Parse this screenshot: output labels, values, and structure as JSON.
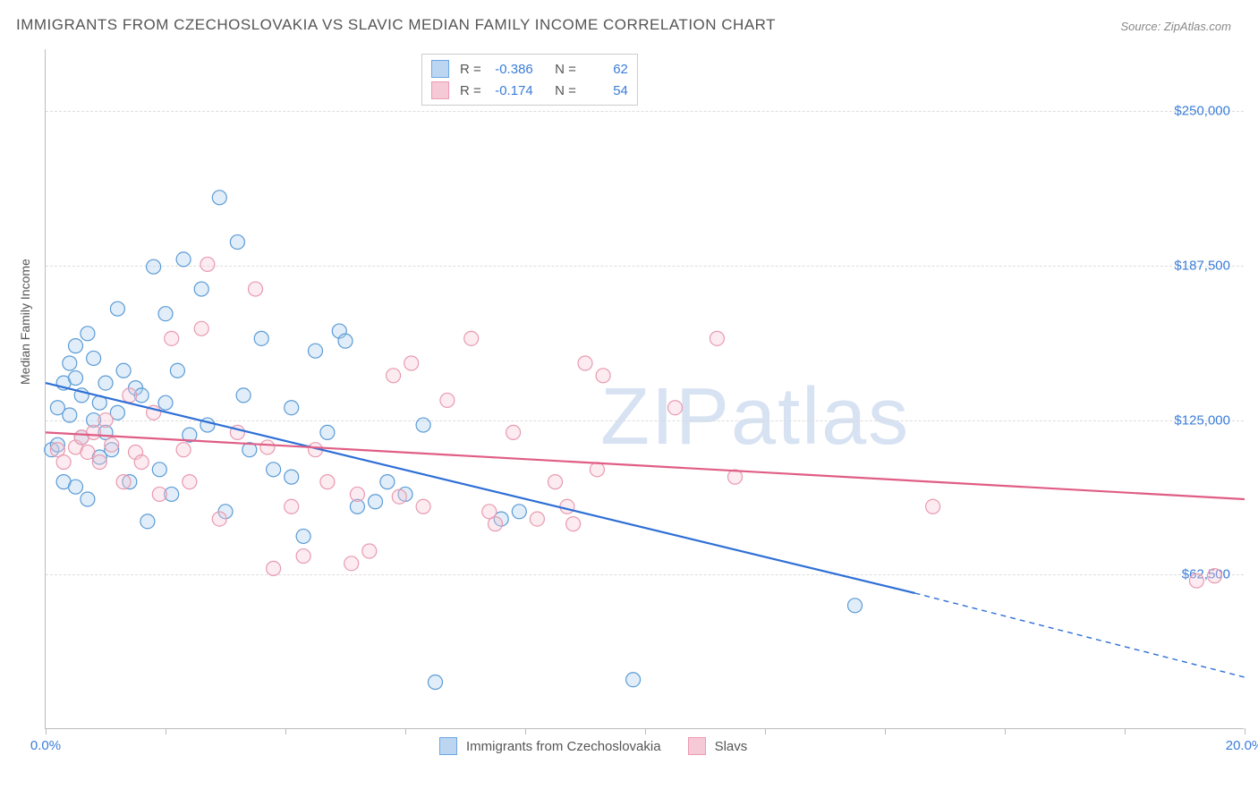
{
  "title": "IMMIGRANTS FROM CZECHOSLOVAKIA VS SLAVIC MEDIAN FAMILY INCOME CORRELATION CHART",
  "source_prefix": "Source: ",
  "source_name": "ZipAtlas.com",
  "watermark_left": "ZIP",
  "watermark_right": "atlas",
  "y_axis_label": "Median Family Income",
  "chart": {
    "type": "scatter",
    "background_color": "#ffffff",
    "grid_color": "#dddddd",
    "axis_color": "#bbbbbb",
    "tick_label_color": "#3b7dd8",
    "xlim": [
      0,
      20
    ],
    "ylim": [
      0,
      275000
    ],
    "x_ticks": [
      0,
      2,
      4,
      6,
      8,
      10,
      12,
      14,
      16,
      18,
      20
    ],
    "x_tick_labels": {
      "0": "0.0%",
      "20": "20.0%"
    },
    "y_gridlines": [
      62500,
      125000,
      187500,
      250000
    ],
    "y_tick_labels": {
      "62500": "$62,500",
      "125000": "$125,000",
      "187500": "$187,500",
      "250000": "$250,000"
    },
    "marker_radius": 8,
    "marker_stroke_width": 1.2,
    "marker_fill_opacity": 0.35,
    "trend_line_width": 2.2,
    "series": [
      {
        "name": "Immigrants from Czechoslovakia",
        "color_stroke": "#5b9bd5",
        "color_fill": "#a8cdef",
        "trend_color": "#2e6fd6",
        "swatch_fill": "#bcd6f2",
        "swatch_border": "#6ca6e2",
        "R": "-0.386",
        "N": "62",
        "trend": {
          "x1": 0,
          "y1": 140000,
          "x2_solid": 14.5,
          "y2_solid": 55000,
          "x2": 20,
          "y2": 21000
        },
        "points": [
          [
            0.1,
            113000
          ],
          [
            0.2,
            115000
          ],
          [
            0.2,
            130000
          ],
          [
            0.3,
            140000
          ],
          [
            0.3,
            100000
          ],
          [
            0.4,
            148000
          ],
          [
            0.4,
            127000
          ],
          [
            0.5,
            142000
          ],
          [
            0.5,
            98000
          ],
          [
            0.5,
            155000
          ],
          [
            0.6,
            118000
          ],
          [
            0.6,
            135000
          ],
          [
            0.7,
            160000
          ],
          [
            0.7,
            93000
          ],
          [
            0.8,
            125000
          ],
          [
            0.8,
            150000
          ],
          [
            0.9,
            132000
          ],
          [
            0.9,
            110000
          ],
          [
            1.0,
            140000
          ],
          [
            1.0,
            120000
          ],
          [
            1.1,
            113000
          ],
          [
            1.2,
            170000
          ],
          [
            1.2,
            128000
          ],
          [
            1.3,
            145000
          ],
          [
            1.4,
            100000
          ],
          [
            1.5,
            138000
          ],
          [
            1.6,
            135000
          ],
          [
            1.7,
            84000
          ],
          [
            1.8,
            187000
          ],
          [
            1.9,
            105000
          ],
          [
            2.0,
            168000
          ],
          [
            2.0,
            132000
          ],
          [
            2.1,
            95000
          ],
          [
            2.2,
            145000
          ],
          [
            2.3,
            190000
          ],
          [
            2.4,
            119000
          ],
          [
            2.6,
            178000
          ],
          [
            2.7,
            123000
          ],
          [
            2.9,
            215000
          ],
          [
            3.0,
            88000
          ],
          [
            3.2,
            197000
          ],
          [
            3.3,
            135000
          ],
          [
            3.4,
            113000
          ],
          [
            3.6,
            158000
          ],
          [
            3.8,
            105000
          ],
          [
            4.1,
            102000
          ],
          [
            4.1,
            130000
          ],
          [
            4.3,
            78000
          ],
          [
            4.5,
            153000
          ],
          [
            4.7,
            120000
          ],
          [
            4.9,
            161000
          ],
          [
            5.0,
            157000
          ],
          [
            5.2,
            90000
          ],
          [
            5.5,
            92000
          ],
          [
            5.7,
            100000
          ],
          [
            6.0,
            95000
          ],
          [
            6.3,
            123000
          ],
          [
            6.5,
            19000
          ],
          [
            7.6,
            85000
          ],
          [
            7.9,
            88000
          ],
          [
            9.8,
            20000
          ],
          [
            13.5,
            50000
          ]
        ]
      },
      {
        "name": "Slavs",
        "color_stroke": "#e89ab0",
        "color_fill": "#f6c5d3",
        "trend_color": "#e05d85",
        "swatch_fill": "#f6c9d6",
        "swatch_border": "#eb9ab3",
        "R": "-0.174",
        "N": "54",
        "trend": {
          "x1": 0,
          "y1": 120000,
          "x2_solid": 20,
          "y2_solid": 93000,
          "x2": 20,
          "y2": 93000
        },
        "points": [
          [
            0.2,
            113000
          ],
          [
            0.3,
            108000
          ],
          [
            0.5,
            114000
          ],
          [
            0.6,
            118000
          ],
          [
            0.7,
            112000
          ],
          [
            0.8,
            120000
          ],
          [
            0.9,
            108000
          ],
          [
            1.0,
            125000
          ],
          [
            1.1,
            115000
          ],
          [
            1.3,
            100000
          ],
          [
            1.4,
            135000
          ],
          [
            1.5,
            112000
          ],
          [
            1.6,
            108000
          ],
          [
            1.8,
            128000
          ],
          [
            1.9,
            95000
          ],
          [
            2.1,
            158000
          ],
          [
            2.3,
            113000
          ],
          [
            2.4,
            100000
          ],
          [
            2.6,
            162000
          ],
          [
            2.7,
            188000
          ],
          [
            2.9,
            85000
          ],
          [
            3.2,
            120000
          ],
          [
            3.5,
            178000
          ],
          [
            3.7,
            114000
          ],
          [
            3.8,
            65000
          ],
          [
            4.1,
            90000
          ],
          [
            4.3,
            70000
          ],
          [
            4.5,
            113000
          ],
          [
            4.7,
            100000
          ],
          [
            5.1,
            67000
          ],
          [
            5.2,
            95000
          ],
          [
            5.4,
            72000
          ],
          [
            5.8,
            143000
          ],
          [
            5.9,
            94000
          ],
          [
            6.1,
            148000
          ],
          [
            6.3,
            90000
          ],
          [
            6.7,
            133000
          ],
          [
            7.1,
            158000
          ],
          [
            7.4,
            88000
          ],
          [
            7.8,
            120000
          ],
          [
            8.2,
            85000
          ],
          [
            8.5,
            100000
          ],
          [
            8.7,
            90000
          ],
          [
            8.8,
            83000
          ],
          [
            9.0,
            148000
          ],
          [
            9.2,
            105000
          ],
          [
            9.3,
            143000
          ],
          [
            10.5,
            130000
          ],
          [
            11.2,
            158000
          ],
          [
            11.5,
            102000
          ],
          [
            14.8,
            90000
          ],
          [
            19.2,
            60000
          ],
          [
            19.5,
            62000
          ],
          [
            7.5,
            83000
          ]
        ]
      }
    ]
  },
  "stats_box": {
    "R_label": "R =",
    "N_label": "N ="
  },
  "legend_bottom": [
    {
      "label": "Immigrants from Czechoslovakia",
      "fill": "#bcd6f2",
      "border": "#6ca6e2"
    },
    {
      "label": "Slavs",
      "fill": "#f6c9d6",
      "border": "#eb9ab3"
    }
  ]
}
